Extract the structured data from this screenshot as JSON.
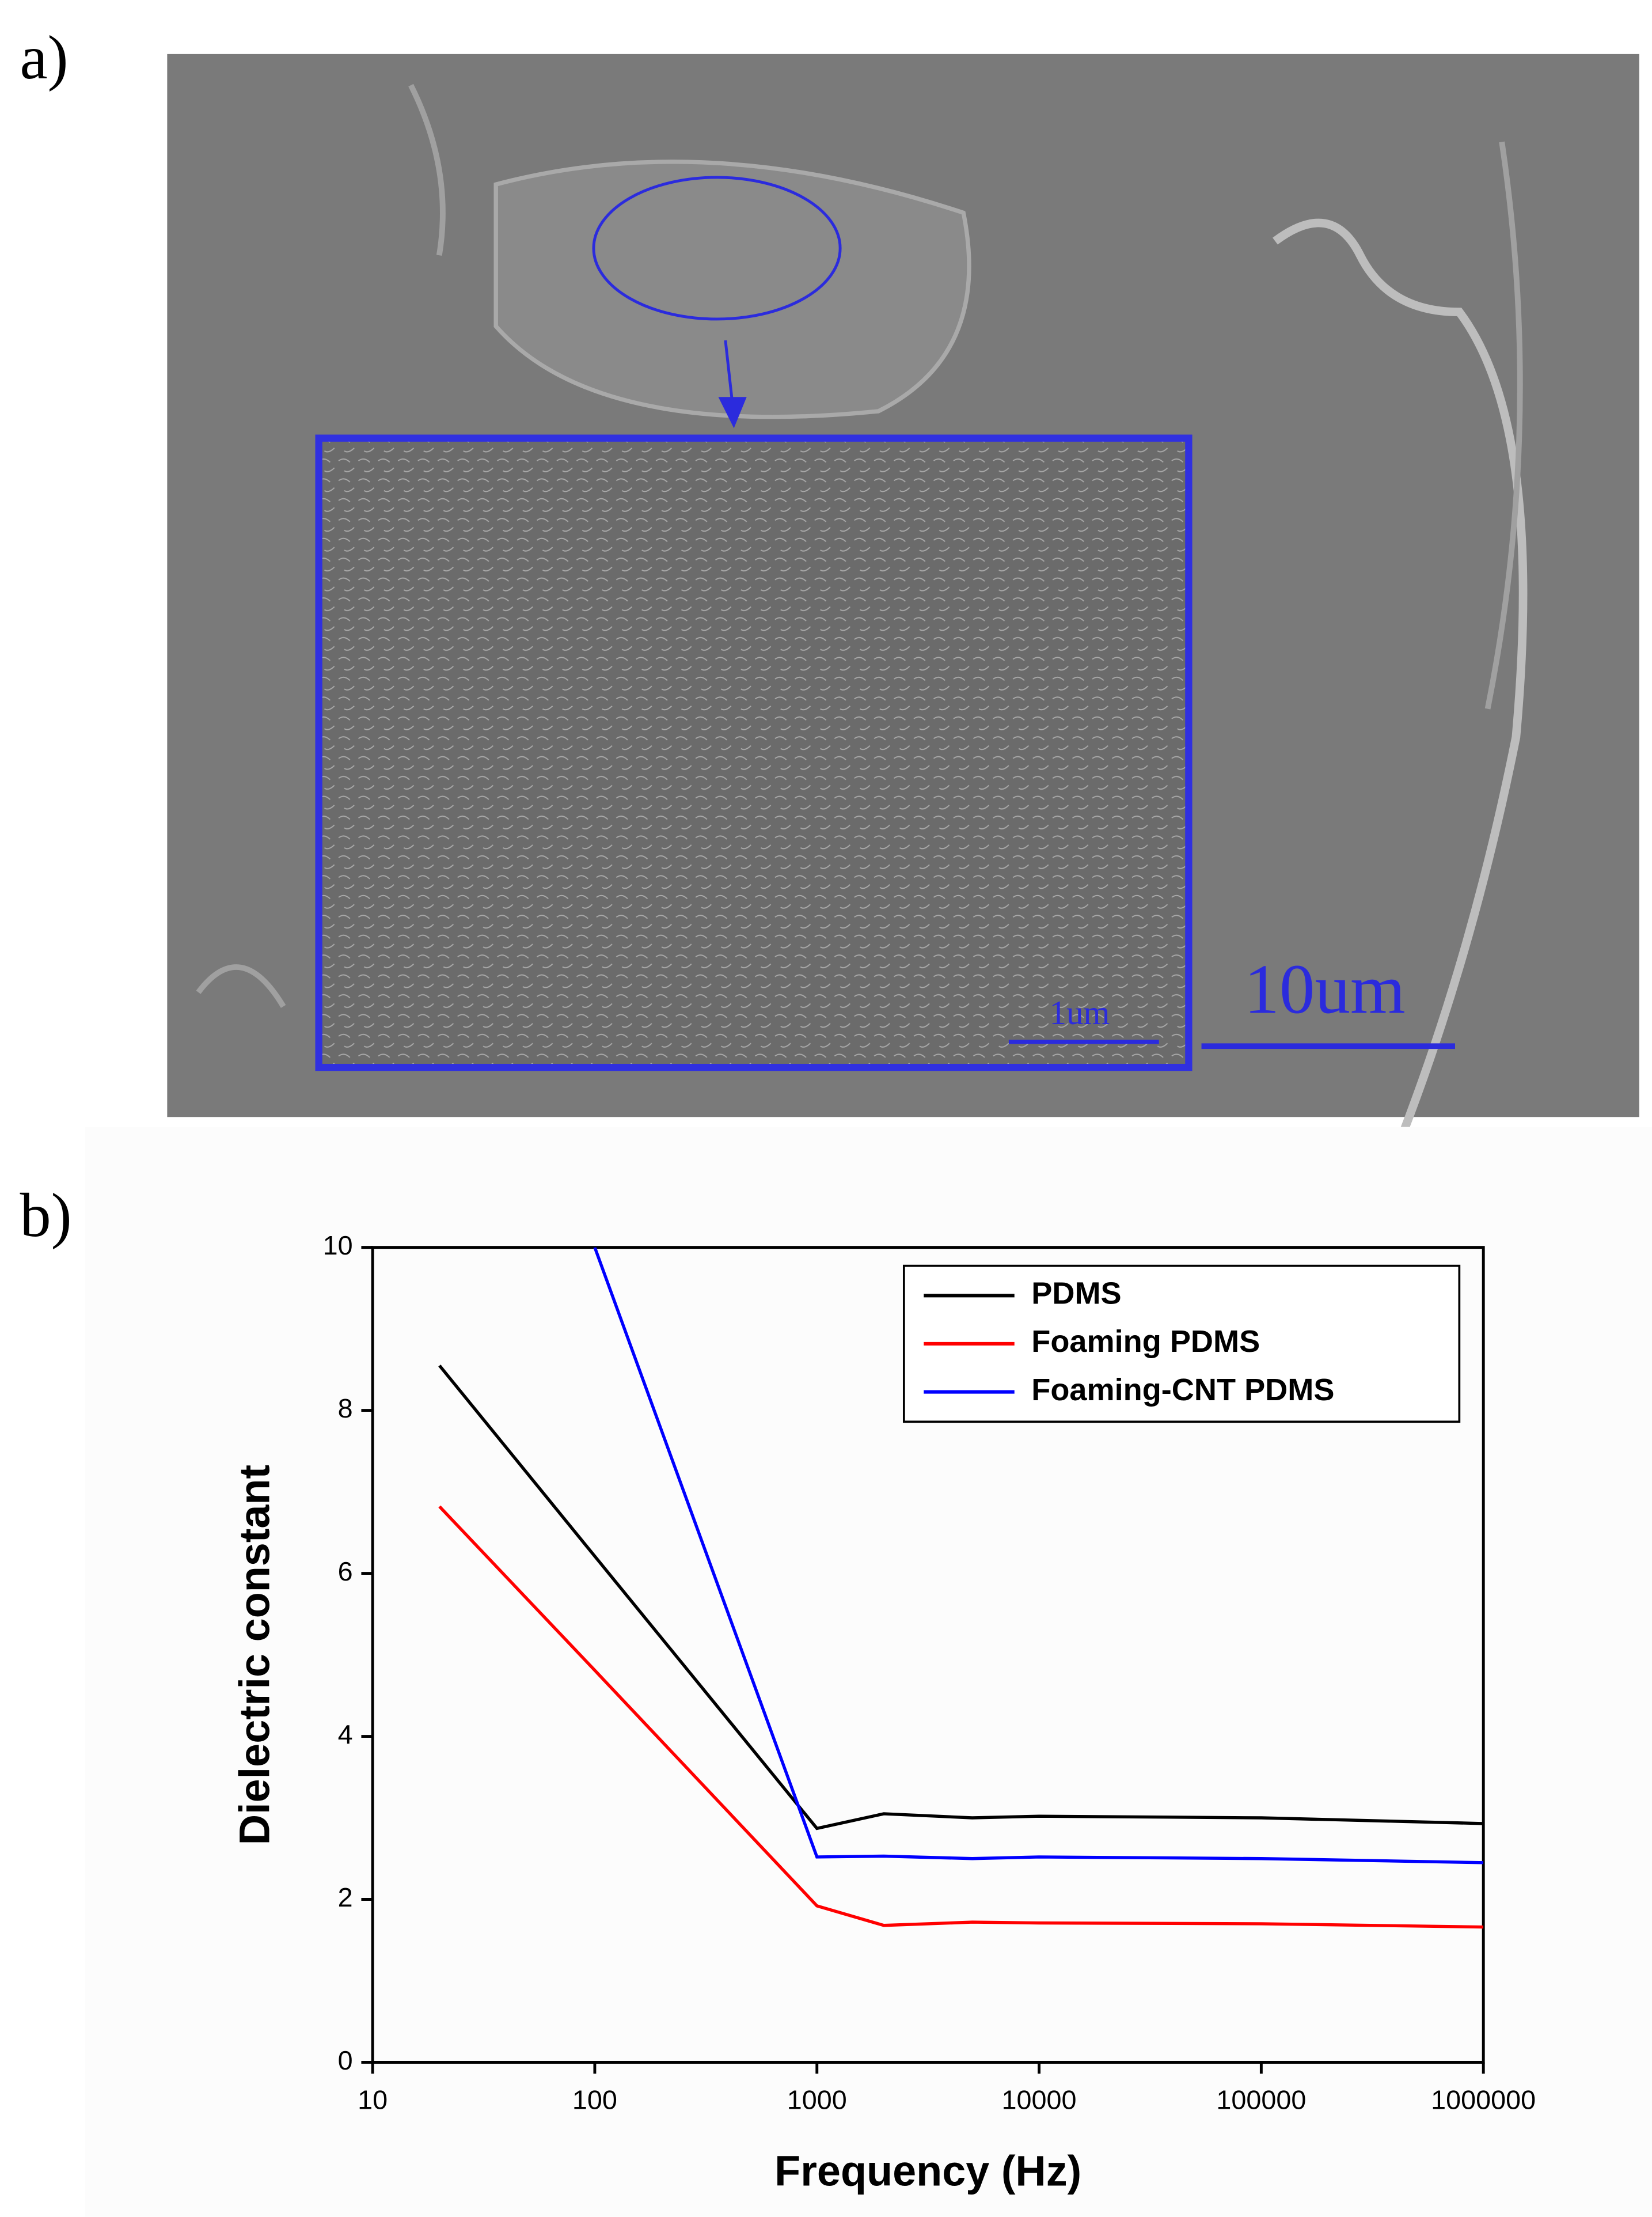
{
  "figure": {
    "panel_a_label": "a)",
    "panel_b_label": "b)",
    "inset_scale_bar": "1um",
    "scale_bar": "10um"
  },
  "chart_data": {
    "type": "line",
    "xlabel": "Frequency (Hz)",
    "ylabel": "Dielectric constant",
    "xscale": "log",
    "x": [
      20,
      100,
      1000,
      2000,
      5000,
      10000,
      100000,
      1000000
    ],
    "series": [
      {
        "name": "PDMS",
        "color": "#000000",
        "values": [
          8.55,
          6.21,
          2.87,
          3.05,
          3.0,
          3.02,
          3.0,
          2.93
        ]
      },
      {
        "name": "Foaming PDMS",
        "color": "#ff0000",
        "values": [
          6.82,
          4.81,
          1.92,
          1.68,
          1.72,
          1.71,
          1.7,
          1.66
        ]
      },
      {
        "name": "Foaming-CNT PDMS",
        "color": "#0000ff",
        "values": [
          null,
          10.0,
          2.52,
          2.53,
          2.5,
          2.52,
          2.5,
          2.45
        ]
      }
    ],
    "xlim": [
      10,
      1000000
    ],
    "xticks": [
      10,
      100,
      1000,
      10000,
      100000,
      1000000
    ],
    "ylim": [
      0,
      10
    ],
    "yticks": [
      0,
      2,
      4,
      6,
      8,
      10
    ],
    "legend": "upper right"
  }
}
